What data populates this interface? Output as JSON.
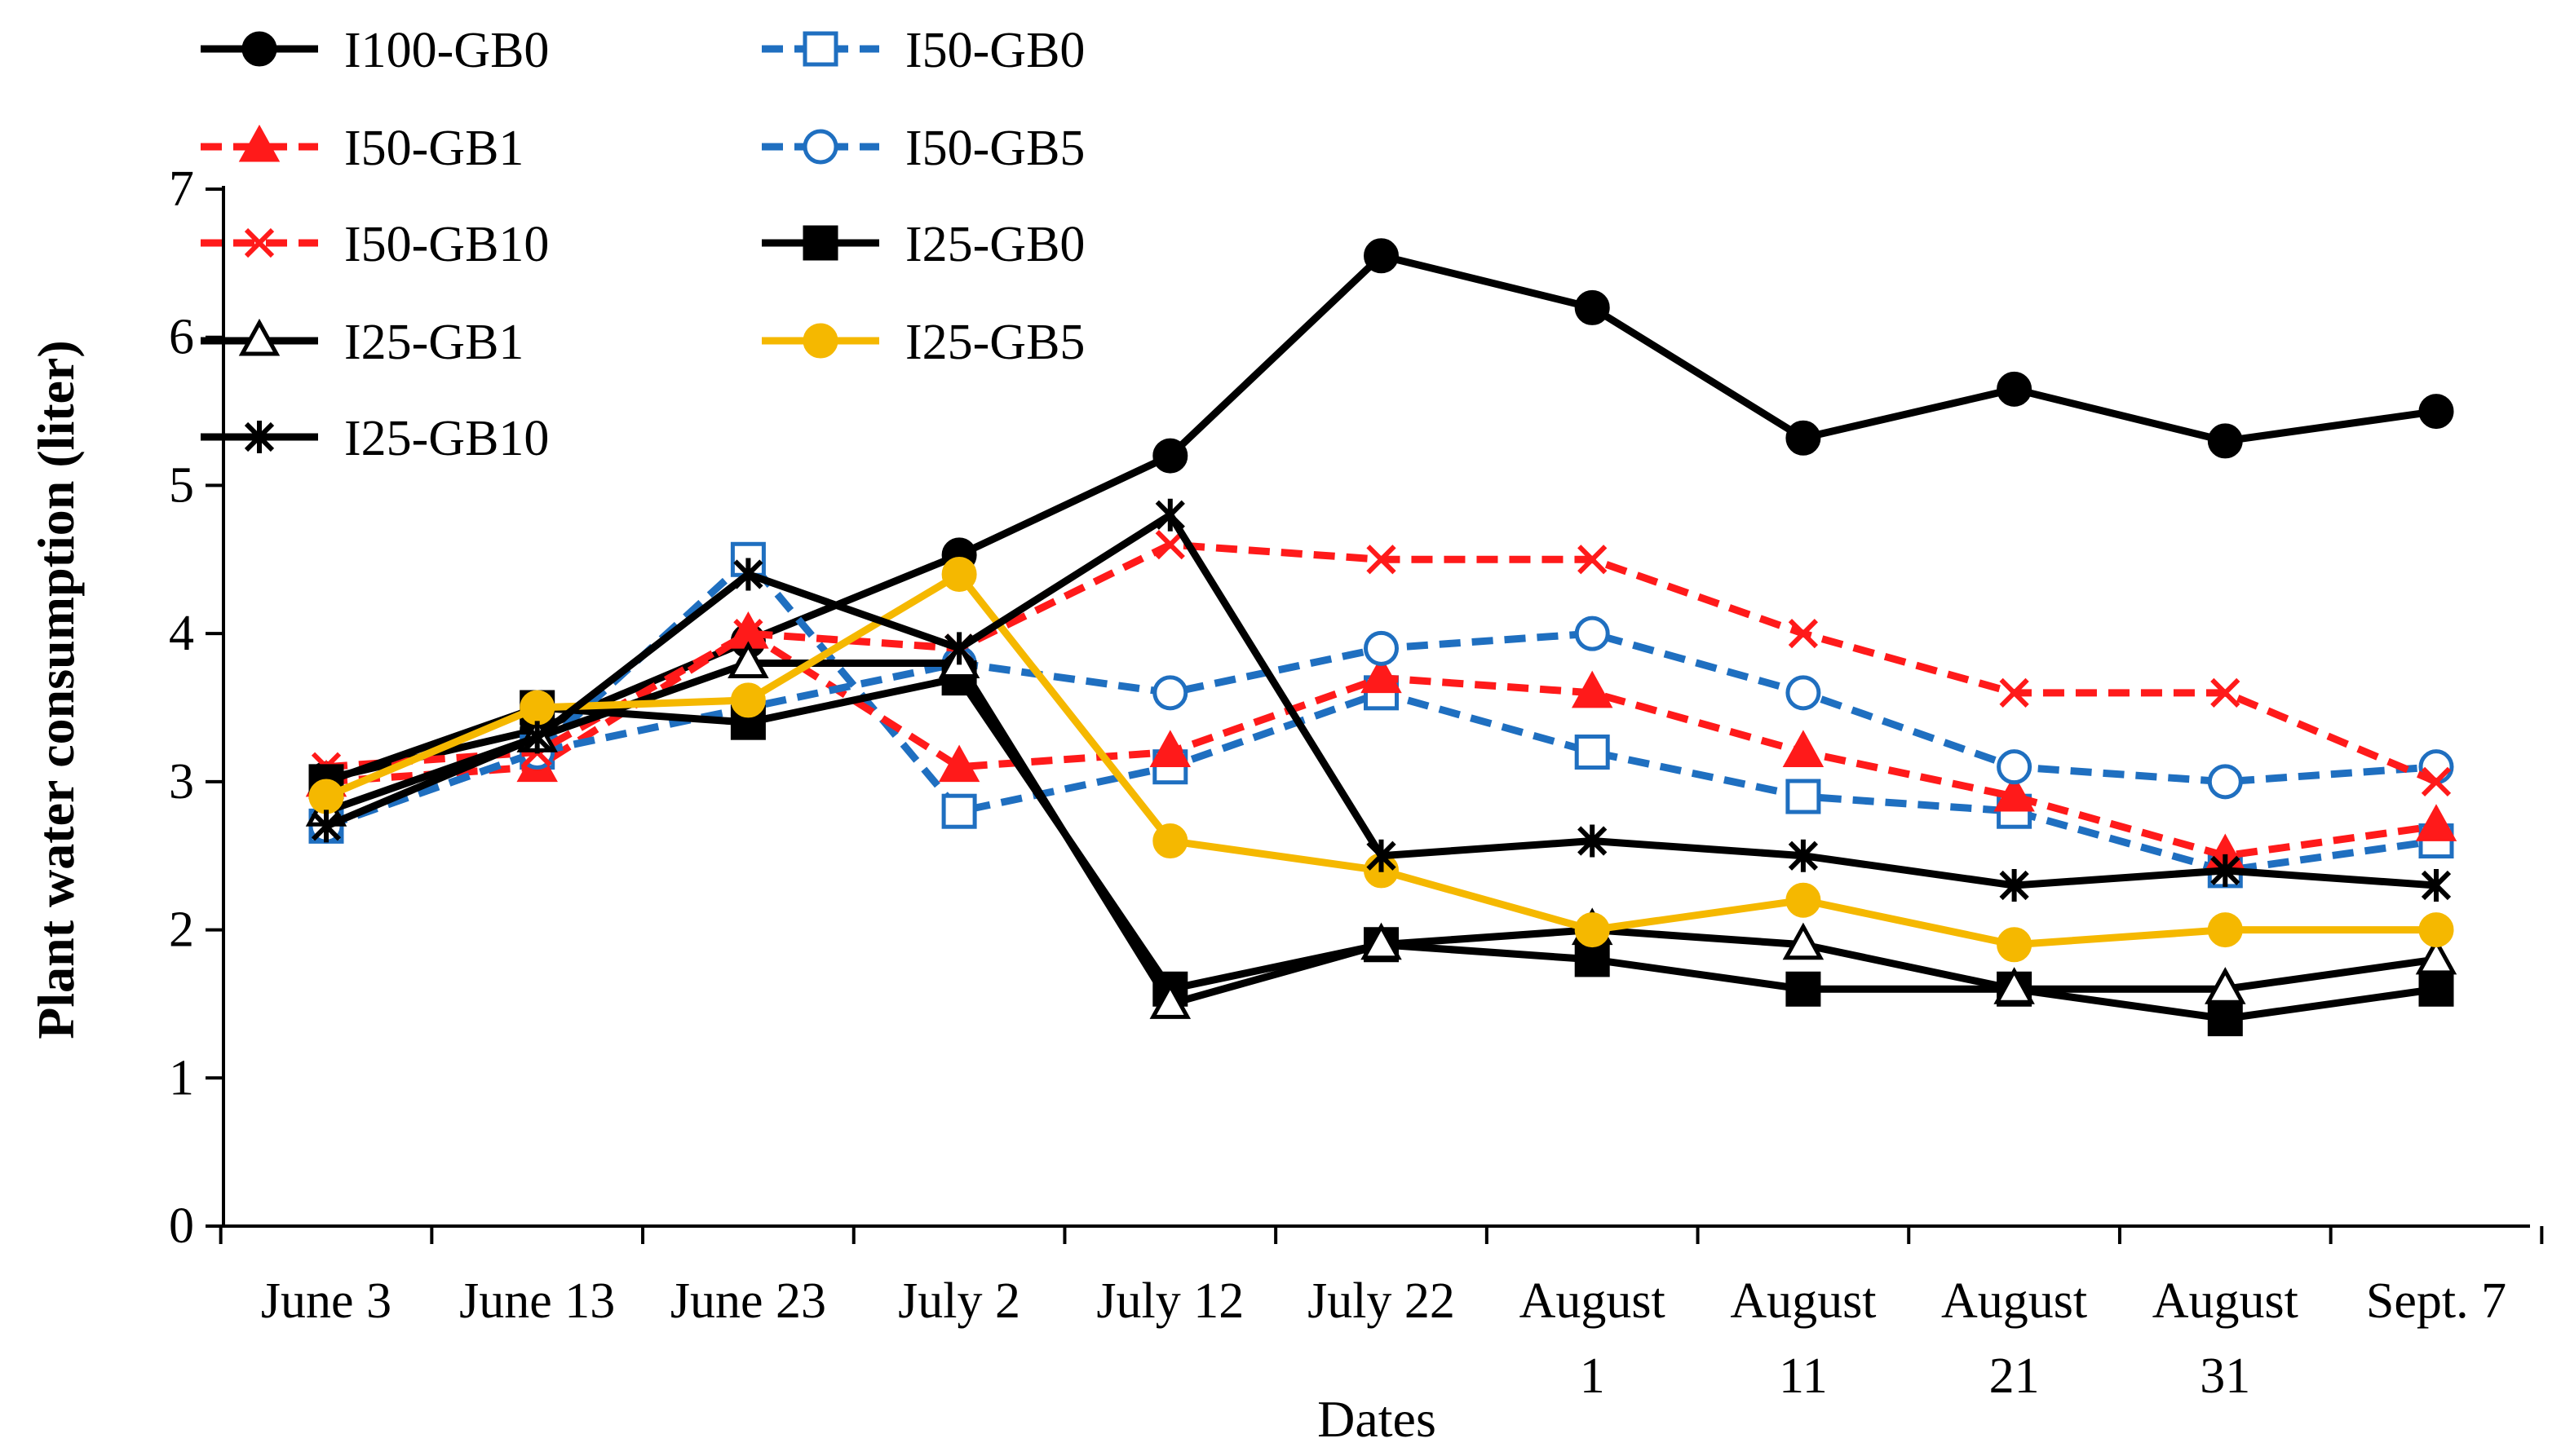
{
  "chart_data": {
    "type": "line",
    "title": "",
    "xlabel": "Dates",
    "ylabel": "Plant water consumption (liter)",
    "ylim": [
      0,
      7
    ],
    "yticks": [
      0,
      1,
      2,
      3,
      4,
      5,
      6,
      7
    ],
    "categories": [
      [
        "June 3"
      ],
      [
        "June 13"
      ],
      [
        "June 23"
      ],
      [
        "July 2"
      ],
      [
        "July 12"
      ],
      [
        "July 22"
      ],
      [
        "August",
        "1"
      ],
      [
        "August",
        "11"
      ],
      [
        "August",
        "21"
      ],
      [
        "August",
        "31"
      ],
      [
        "Sept. 7"
      ]
    ],
    "legend_position": "top-left",
    "series": [
      {
        "name": "I100-GB0",
        "color": "#000000",
        "dash": "solid",
        "marker": "circle",
        "fill": "filled",
        "values": [
          3.02,
          3.35,
          3.95,
          4.53,
          5.2,
          6.55,
          6.2,
          5.32,
          5.65,
          5.3,
          5.5
        ]
      },
      {
        "name": "I50-GB0",
        "color": "#1f6fc0",
        "dash": "dashed",
        "marker": "square",
        "fill": "open",
        "values": [
          2.7,
          3.2,
          4.5,
          2.8,
          3.1,
          3.6,
          3.2,
          2.9,
          2.8,
          2.4,
          2.6
        ]
      },
      {
        "name": "I50-GB1",
        "color": "#ff1a1a",
        "dash": "dashed",
        "marker": "triangle",
        "fill": "filled",
        "values": [
          3.0,
          3.1,
          4.0,
          3.1,
          3.2,
          3.7,
          3.6,
          3.2,
          2.9,
          2.5,
          2.7
        ]
      },
      {
        "name": "I50-GB5",
        "color": "#1f6fc0",
        "dash": "dashed",
        "marker": "circle",
        "fill": "open",
        "values": [
          2.7,
          3.2,
          3.5,
          3.8,
          3.6,
          3.9,
          4.0,
          3.6,
          3.1,
          3.0,
          3.1
        ]
      },
      {
        "name": "I50-GB10",
        "color": "#ff1a1a",
        "dash": "dashed",
        "marker": "x",
        "fill": "none",
        "values": [
          3.1,
          3.2,
          4.0,
          3.9,
          4.6,
          4.5,
          4.5,
          4.0,
          3.6,
          3.6,
          3.0
        ]
      },
      {
        "name": "I25-GB0",
        "color": "#000000",
        "dash": "solid",
        "marker": "square",
        "fill": "filled",
        "values": [
          3.0,
          3.5,
          3.4,
          3.7,
          1.6,
          1.9,
          1.8,
          1.6,
          1.6,
          1.4,
          1.6
        ]
      },
      {
        "name": "I25-GB1",
        "color": "#000000",
        "dash": "solid",
        "marker": "triangle",
        "fill": "open",
        "values": [
          2.8,
          3.3,
          3.8,
          3.8,
          1.5,
          1.9,
          2.0,
          1.9,
          1.6,
          1.6,
          1.8
        ]
      },
      {
        "name": "I25-GB5",
        "color": "#f5b800",
        "dash": "solid",
        "marker": "circle",
        "fill": "filled",
        "values": [
          2.9,
          3.5,
          3.55,
          4.4,
          2.6,
          2.4,
          2.0,
          2.2,
          1.9,
          2.0,
          2.0
        ]
      },
      {
        "name": "I25-GB10",
        "color": "#000000",
        "dash": "solid",
        "marker": "asterisk",
        "fill": "none",
        "values": [
          2.7,
          3.3,
          4.4,
          3.9,
          4.8,
          2.5,
          2.6,
          2.5,
          2.3,
          2.4,
          2.3
        ]
      }
    ]
  }
}
